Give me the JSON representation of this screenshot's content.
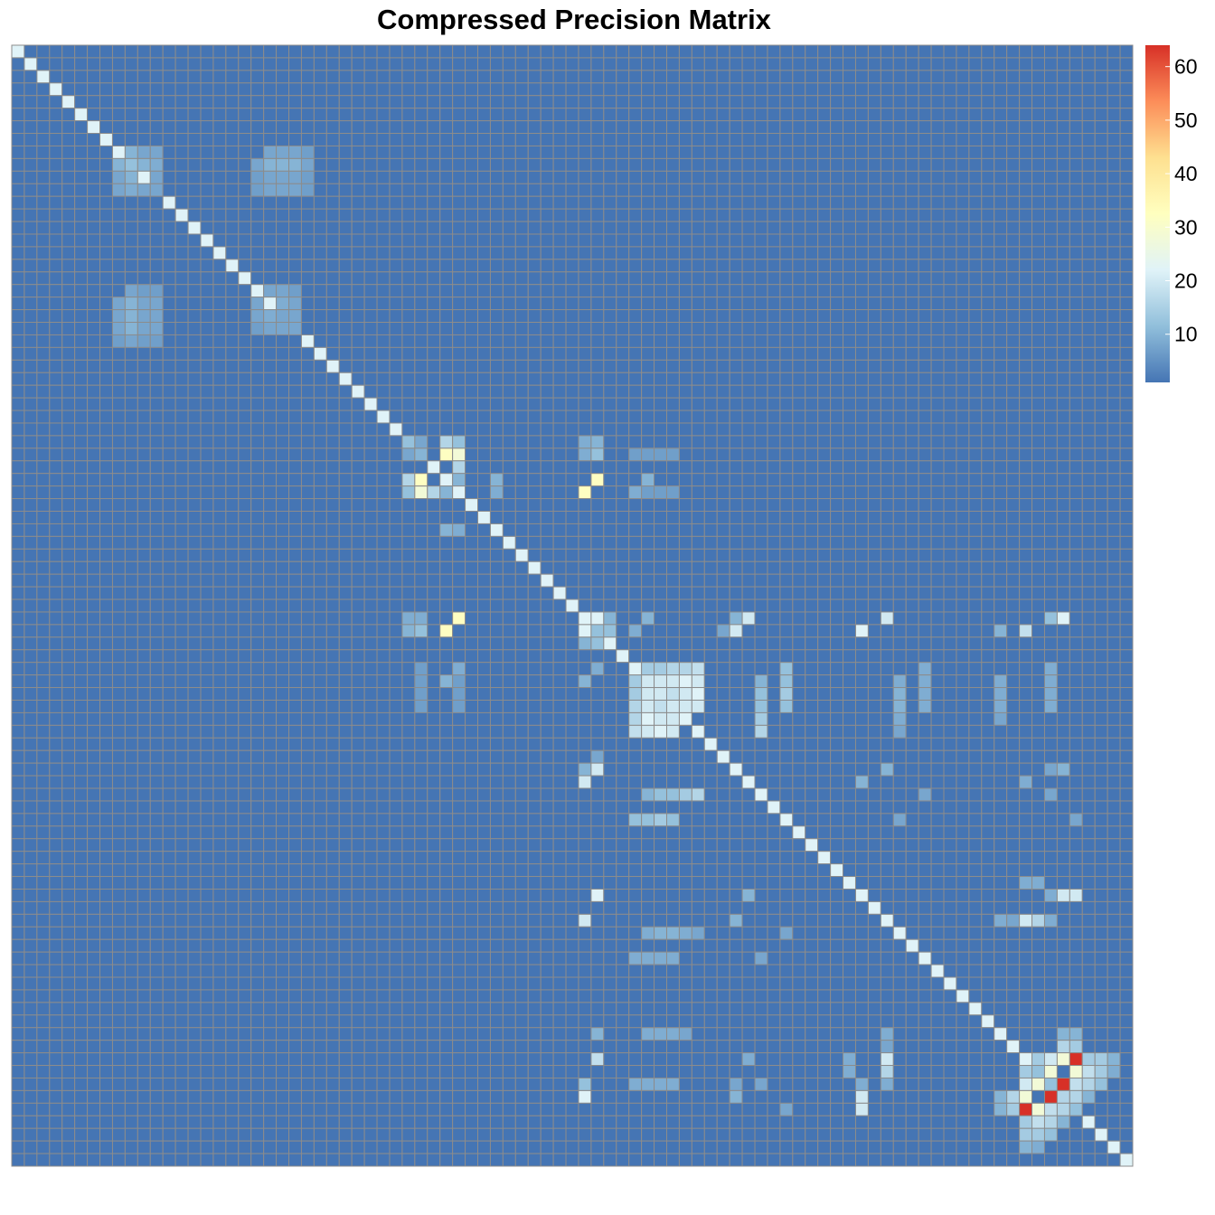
{
  "chart_data": {
    "type": "heatmap",
    "title": "Compressed Precision Matrix",
    "n_rows": 89,
    "n_cols": 89,
    "base_value": 1,
    "diagonal_value": 22,
    "colorbar": {
      "min": 1,
      "max": 64,
      "ticks": [
        10,
        20,
        30,
        40,
        50,
        60
      ],
      "colors": [
        "#4575b4",
        "#91bfdb",
        "#e0f3f8",
        "#ffffbf",
        "#fee090",
        "#fc8d59",
        "#d73027"
      ]
    },
    "colors": {
      "cell_border": "#8c8c8c",
      "background": "#ffffff"
    },
    "cells": [
      [
        9,
        8,
        10
      ],
      [
        9,
        9,
        12
      ],
      [
        9,
        10,
        8
      ],
      [
        9,
        11,
        8
      ],
      [
        10,
        8,
        8
      ],
      [
        10,
        9,
        10
      ],
      [
        10,
        11,
        8
      ],
      [
        11,
        8,
        8
      ],
      [
        11,
        9,
        9
      ],
      [
        11,
        10,
        8
      ],
      [
        11,
        11,
        8
      ],
      [
        9,
        19,
        8
      ],
      [
        9,
        20,
        7
      ],
      [
        9,
        21,
        7
      ],
      [
        9,
        22,
        7
      ],
      [
        10,
        19,
        7
      ],
      [
        10,
        20,
        7
      ],
      [
        10,
        21,
        7
      ],
      [
        10,
        22,
        7
      ],
      [
        11,
        19,
        7
      ],
      [
        11,
        20,
        7
      ],
      [
        11,
        21,
        7
      ],
      [
        11,
        22,
        7
      ],
      [
        20,
        8,
        8
      ],
      [
        20,
        9,
        10
      ],
      [
        20,
        10,
        8
      ],
      [
        20,
        11,
        8
      ],
      [
        21,
        8,
        8
      ],
      [
        21,
        9,
        10
      ],
      [
        21,
        10,
        8
      ],
      [
        21,
        11,
        8
      ],
      [
        22,
        8,
        8
      ],
      [
        22,
        9,
        10
      ],
      [
        22,
        10,
        8
      ],
      [
        22,
        11,
        8
      ],
      [
        23,
        8,
        7
      ],
      [
        23,
        9,
        8
      ],
      [
        23,
        10,
        7
      ],
      [
        23,
        11,
        7
      ],
      [
        20,
        19,
        8
      ],
      [
        20,
        21,
        8
      ],
      [
        20,
        22,
        8
      ],
      [
        21,
        19,
        8
      ],
      [
        21,
        20,
        9
      ],
      [
        21,
        21,
        8
      ],
      [
        21,
        22,
        8
      ],
      [
        22,
        19,
        7
      ],
      [
        22,
        20,
        8
      ],
      [
        22,
        22,
        8
      ],
      [
        31,
        31,
        12
      ],
      [
        31,
        34,
        16
      ],
      [
        32,
        31,
        8
      ],
      [
        32,
        32,
        10
      ],
      [
        32,
        34,
        32
      ],
      [
        35,
        31,
        12
      ],
      [
        35,
        32,
        28
      ],
      [
        35,
        33,
        16
      ],
      [
        35,
        34,
        10
      ],
      [
        35,
        38,
        9
      ],
      [
        35,
        45,
        32
      ],
      [
        31,
        45,
        9
      ],
      [
        32,
        45,
        9
      ],
      [
        38,
        34,
        10
      ],
      [
        32,
        49,
        7
      ],
      [
        32,
        50,
        7
      ],
      [
        32,
        51,
        7
      ],
      [
        32,
        52,
        7
      ],
      [
        35,
        49,
        9
      ],
      [
        35,
        50,
        7
      ],
      [
        35,
        51,
        7
      ],
      [
        35,
        52,
        7
      ],
      [
        46,
        31,
        10
      ],
      [
        46,
        32,
        12
      ],
      [
        46,
        34,
        32
      ],
      [
        46,
        45,
        22
      ],
      [
        46,
        46,
        12
      ],
      [
        46,
        49,
        9
      ],
      [
        46,
        56,
        8
      ],
      [
        46,
        57,
        20
      ],
      [
        46,
        67,
        22
      ],
      [
        46,
        78,
        10
      ],
      [
        46,
        80,
        18
      ],
      [
        47,
        45,
        10
      ],
      [
        47,
        46,
        12
      ],
      [
        50,
        49,
        14
      ],
      [
        50,
        50,
        20
      ],
      [
        50,
        51,
        16
      ],
      [
        50,
        52,
        16
      ],
      [
        51,
        49,
        14
      ],
      [
        51,
        50,
        20
      ],
      [
        51,
        51,
        20
      ],
      [
        51,
        52,
        18
      ],
      [
        52,
        49,
        16
      ],
      [
        52,
        50,
        20
      ],
      [
        52,
        52,
        20
      ],
      [
        53,
        49,
        16
      ],
      [
        53,
        50,
        22
      ],
      [
        53,
        51,
        20
      ],
      [
        53,
        52,
        20
      ],
      [
        54,
        49,
        18
      ],
      [
        54,
        50,
        20
      ],
      [
        54,
        51,
        22
      ],
      [
        54,
        52,
        20
      ],
      [
        50,
        59,
        10
      ],
      [
        51,
        59,
        12
      ],
      [
        52,
        59,
        12
      ],
      [
        53,
        59,
        14
      ],
      [
        54,
        59,
        16
      ],
      [
        50,
        70,
        9
      ],
      [
        51,
        70,
        10
      ],
      [
        52,
        70,
        10
      ],
      [
        53,
        70,
        9
      ],
      [
        54,
        70,
        8
      ],
      [
        50,
        34,
        10
      ],
      [
        50,
        45,
        10
      ],
      [
        50,
        78,
        9
      ],
      [
        51,
        78,
        9
      ],
      [
        52,
        78,
        9
      ],
      [
        53,
        78,
        8
      ],
      [
        57,
        45,
        10
      ],
      [
        58,
        45,
        20
      ],
      [
        58,
        67,
        10
      ],
      [
        58,
        80,
        9
      ],
      [
        61,
        49,
        12
      ],
      [
        61,
        50,
        12
      ],
      [
        61,
        51,
        14
      ],
      [
        61,
        52,
        12
      ],
      [
        61,
        70,
        8
      ],
      [
        66,
        80,
        9
      ],
      [
        66,
        81,
        9
      ],
      [
        69,
        45,
        20
      ],
      [
        69,
        57,
        10
      ],
      [
        69,
        78,
        9
      ],
      [
        69,
        79,
        8
      ],
      [
        69,
        80,
        20
      ],
      [
        69,
        81,
        16
      ],
      [
        69,
        82,
        9
      ],
      [
        72,
        49,
        9
      ],
      [
        72,
        50,
        9
      ],
      [
        72,
        51,
        9
      ],
      [
        72,
        52,
        9
      ],
      [
        72,
        59,
        8
      ],
      [
        81,
        80,
        14
      ],
      [
        81,
        81,
        12
      ],
      [
        82,
        45,
        12
      ],
      [
        82,
        49,
        9
      ],
      [
        82,
        50,
        9
      ],
      [
        82,
        51,
        9
      ],
      [
        82,
        52,
        9
      ],
      [
        82,
        57,
        8
      ],
      [
        82,
        59,
        8
      ],
      [
        82,
        67,
        9
      ],
      [
        82,
        80,
        20
      ],
      [
        82,
        81,
        28
      ],
      [
        82,
        82,
        12
      ],
      [
        83,
        45,
        22
      ],
      [
        83,
        57,
        10
      ],
      [
        83,
        67,
        20
      ],
      [
        83,
        78,
        10
      ],
      [
        83,
        79,
        16
      ],
      [
        83,
        80,
        28
      ],
      [
        83,
        82,
        64
      ],
      [
        83,
        83,
        16
      ],
      [
        83,
        84,
        12
      ],
      [
        84,
        61,
        8
      ],
      [
        84,
        67,
        20
      ],
      [
        84,
        78,
        10
      ],
      [
        84,
        79,
        14
      ],
      [
        84,
        80,
        64
      ],
      [
        84,
        81,
        28
      ],
      [
        84,
        82,
        18
      ],
      [
        84,
        83,
        16
      ],
      [
        84,
        84,
        12
      ],
      [
        85,
        80,
        14
      ],
      [
        85,
        81,
        18
      ],
      [
        85,
        82,
        16
      ],
      [
        85,
        83,
        10
      ],
      [
        86,
        80,
        14
      ],
      [
        86,
        81,
        14
      ],
      [
        86,
        82,
        12
      ],
      [
        87,
        80,
        10
      ],
      [
        87,
        81,
        9
      ]
    ]
  }
}
